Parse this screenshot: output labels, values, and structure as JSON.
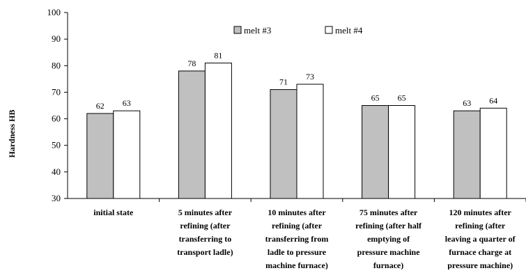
{
  "chart_data": {
    "type": "bar",
    "title": "",
    "ylabel": "Hardness HB",
    "xlabel": "",
    "ylim": [
      30,
      100
    ],
    "yticks": [
      30,
      40,
      50,
      60,
      70,
      80,
      90,
      100
    ],
    "grid": false,
    "legend_position": "top",
    "categories": [
      [
        "initial state"
      ],
      [
        "5 minutes after",
        "refining (after",
        "transferring to",
        "transport ladle)"
      ],
      [
        "10 minutes after",
        "refining (after",
        "transferring from",
        "ladle to pressure",
        "machine furnace)"
      ],
      [
        "75 minutes after",
        "refining (after half",
        "emptying of",
        "pressure machine",
        "furnace)"
      ],
      [
        "120 minutes after",
        "refining (after",
        "leaving a quarter of",
        "furnace charge at",
        "pressure machine)"
      ]
    ],
    "series": [
      {
        "name": "melt #3",
        "values": [
          62,
          78,
          71,
          65,
          63
        ],
        "color": "#c0c0c0"
      },
      {
        "name": "melt #4",
        "values": [
          63,
          81,
          73,
          65,
          64
        ],
        "color": "#ffffff"
      }
    ]
  }
}
